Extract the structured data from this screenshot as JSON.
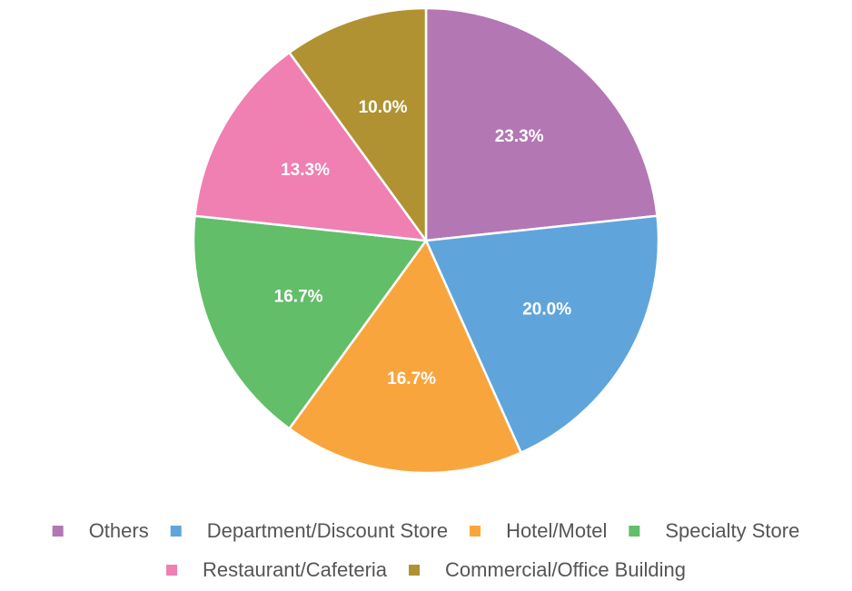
{
  "chart_data": {
    "type": "pie",
    "categories": [
      "Others",
      "Department/Discount Store",
      "Hotel/Motel",
      "Specialty Store",
      "Restaurant/Cafeteria",
      "Commercial/Office Building"
    ],
    "values": [
      23.3,
      20.0,
      16.7,
      16.7,
      13.3,
      10.0
    ],
    "value_labels": [
      "23.3%",
      "20.0%",
      "16.7%",
      "16.7%",
      "13.3%",
      "10.0%"
    ],
    "colors": [
      "#b377b3",
      "#5fa5db",
      "#f9a53d",
      "#62be69",
      "#f07fb2",
      "#b09232"
    ],
    "legend": "bottom"
  }
}
